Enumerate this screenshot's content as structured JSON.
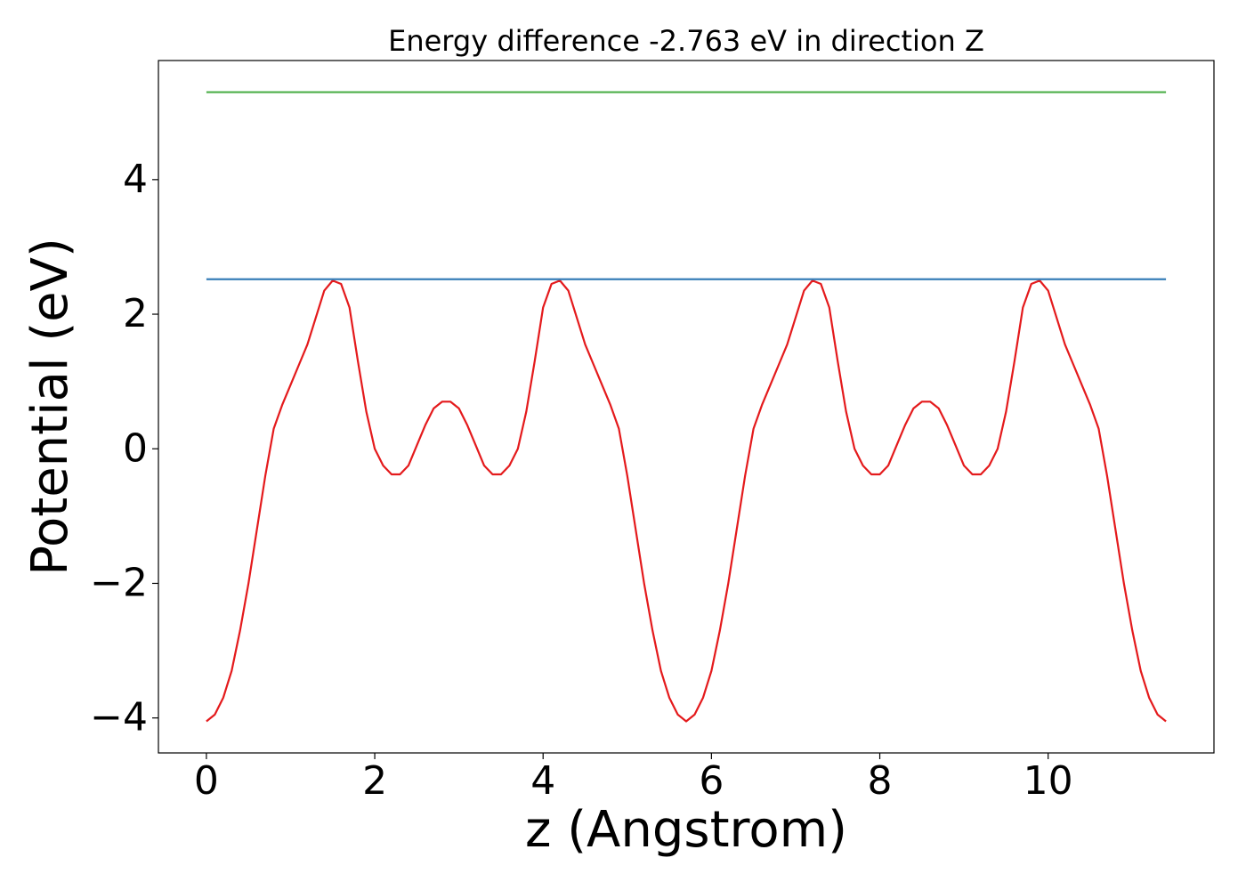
{
  "chart_data": {
    "type": "line",
    "title": "Energy difference -2.763 eV in direction Z",
    "xlabel": "z (Angstrom)",
    "ylabel": "Potential (eV)",
    "xlim": [
      -0.57,
      11.97
    ],
    "ylim": [
      -4.52,
      5.77
    ],
    "xticks": [
      0,
      2,
      4,
      6,
      8,
      10
    ],
    "yticks": [
      {
        "value": -4,
        "label": "−4"
      },
      {
        "value": -2,
        "label": "−2"
      },
      0,
      2,
      4
    ],
    "series": [
      {
        "color": "#e41a1c",
        "x": [
          0,
          0.1,
          0.2,
          0.3,
          0.4,
          0.5,
          0.6,
          0.7,
          0.8,
          0.9,
          1.0,
          1.1,
          1.2,
          1.3,
          1.4,
          1.5,
          1.6,
          1.7,
          1.8,
          1.9,
          2.0,
          2.1,
          2.2,
          2.3,
          2.4,
          2.5,
          2.6,
          2.7,
          2.8,
          2.9,
          3.0,
          3.1,
          3.2,
          3.3,
          3.4,
          3.5,
          3.6,
          3.7,
          3.8,
          3.9,
          4.0,
          4.1,
          4.2,
          4.3,
          4.4,
          4.5,
          4.6,
          4.7,
          4.8,
          4.9,
          5.0,
          5.1,
          5.2,
          5.3,
          5.4,
          5.5,
          5.6,
          5.7,
          5.8,
          5.9,
          6.0,
          6.1,
          6.2,
          6.3,
          6.4,
          6.5,
          6.6,
          6.7,
          6.8,
          6.9,
          7.0,
          7.1,
          7.2,
          7.3,
          7.4,
          7.5,
          7.6,
          7.7,
          7.8,
          7.9,
          8.0,
          8.1,
          8.2,
          8.3,
          8.4,
          8.5,
          8.6,
          8.7,
          8.8,
          8.9,
          9.0,
          9.1,
          9.2,
          9.3,
          9.4,
          9.5,
          9.6,
          9.7,
          9.8,
          9.9,
          10.0,
          10.1,
          10.2,
          10.3,
          10.4,
          10.5,
          10.6,
          10.7,
          10.8,
          10.9,
          11.0,
          11.1,
          11.2,
          11.3,
          11.4
        ],
        "values": [
          -4.05,
          -3.95,
          -3.7,
          -3.3,
          -2.7,
          -2.0,
          -1.2,
          -0.4,
          0.3,
          0.65,
          0.95,
          1.25,
          1.55,
          1.95,
          2.35,
          2.5,
          2.45,
          2.1,
          1.3,
          0.55,
          0.0,
          -0.25,
          -0.38,
          -0.38,
          -0.25,
          0.05,
          0.35,
          0.6,
          0.7,
          0.7,
          0.6,
          0.35,
          0.05,
          -0.25,
          -0.38,
          -0.38,
          -0.25,
          0.0,
          0.55,
          1.3,
          2.1,
          2.45,
          2.5,
          2.35,
          1.95,
          1.55,
          1.25,
          0.95,
          0.65,
          0.3,
          -0.4,
          -1.2,
          -2.0,
          -2.7,
          -3.3,
          -3.7,
          -3.95,
          -4.05,
          -3.95,
          -3.7,
          -3.3,
          -2.7,
          -2.0,
          -1.2,
          -0.4,
          0.3,
          0.65,
          0.95,
          1.25,
          1.55,
          1.95,
          2.35,
          2.5,
          2.45,
          2.1,
          1.3,
          0.55,
          0.0,
          -0.25,
          -0.38,
          -0.38,
          -0.25,
          0.05,
          0.35,
          0.6,
          0.7,
          0.7,
          0.6,
          0.35,
          0.05,
          -0.25,
          -0.38,
          -0.38,
          -0.25,
          0.0,
          0.55,
          1.3,
          2.1,
          2.45,
          2.5,
          2.35,
          1.95,
          1.55,
          1.25,
          0.95,
          0.65,
          0.3,
          -0.4,
          -1.2,
          -2.0,
          -2.7,
          -3.3,
          -3.7,
          -3.95,
          -4.05
        ]
      },
      {
        "color": "#377eb8",
        "x": [
          0,
          11.4
        ],
        "values": [
          2.52,
          2.52
        ]
      },
      {
        "color": "#4daf4a",
        "x": [
          0,
          11.4
        ],
        "values": [
          5.3,
          5.3
        ]
      }
    ]
  }
}
